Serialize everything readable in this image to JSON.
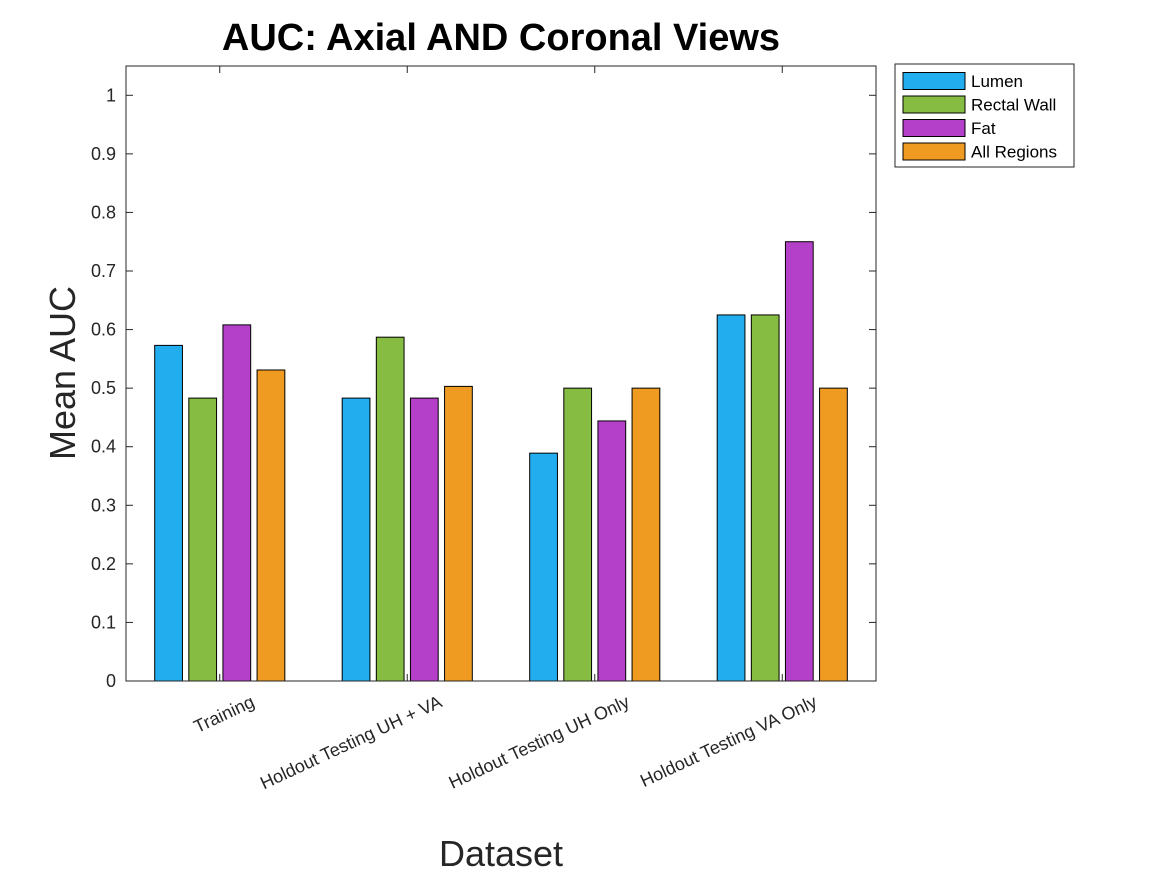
{
  "chart_data": {
    "type": "bar",
    "title": "AUC: Axial AND Coronal Views",
    "xlabel": "Dataset",
    "ylabel": "Mean AUC",
    "categories": [
      "Training",
      "Holdout Testing UH + VA",
      "Holdout Testing UH Only",
      "Holdout Testing VA Only"
    ],
    "series": [
      {
        "name": "Lumen",
        "color": "#22ADEE",
        "values": [
          0.573,
          0.483,
          0.389,
          0.625
        ]
      },
      {
        "name": "Rectal Wall",
        "color": "#86BC42",
        "values": [
          0.483,
          0.587,
          0.5,
          0.625
        ]
      },
      {
        "name": "Fat",
        "color": "#B43FC9",
        "values": [
          0.608,
          0.483,
          0.444,
          0.75
        ]
      },
      {
        "name": "All Regions",
        "color": "#EF9B22",
        "values": [
          0.531,
          0.503,
          0.5,
          0.5
        ]
      }
    ],
    "ylim": [
      0,
      1.05
    ],
    "yticks": [
      "0",
      "0.1",
      "0.2",
      "0.3",
      "0.4",
      "0.5",
      "0.6",
      "0.7",
      "0.8",
      "0.9",
      "1"
    ],
    "grid": false,
    "legend_position": "outside-top-right"
  }
}
